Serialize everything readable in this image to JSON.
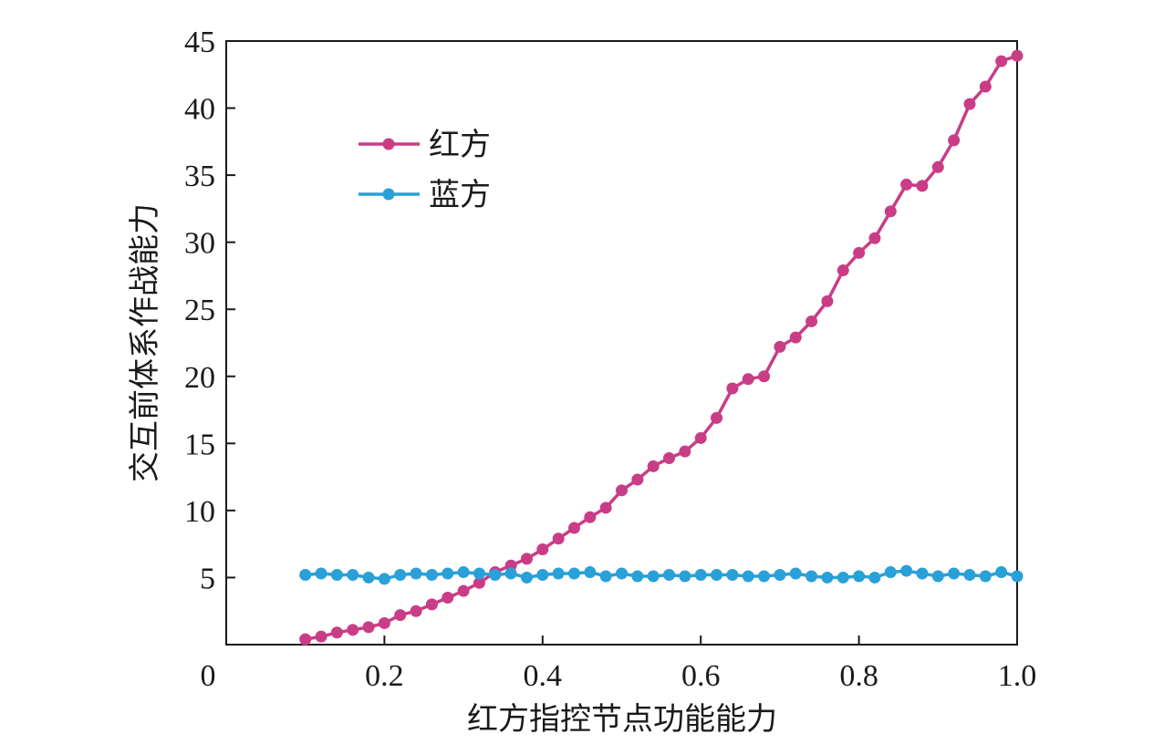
{
  "chart_data": {
    "type": "line",
    "xlabel": "红方指控节点功能能力",
    "ylabel": "交互前体系作战能力",
    "xlim": [
      0,
      1.0
    ],
    "ylim": [
      0,
      45
    ],
    "x_ticks": [
      0.2,
      0.4,
      0.6,
      0.8,
      1.0
    ],
    "x_tick_labels": [
      "0.2",
      "0.4",
      "0.6",
      "0.8",
      "1.0"
    ],
    "y_ticks": [
      5,
      10,
      15,
      20,
      25,
      30,
      35,
      40,
      45
    ],
    "y_tick_labels": [
      "5",
      "10",
      "15",
      "20",
      "25",
      "30",
      "35",
      "40",
      "45"
    ],
    "origin_label": "0",
    "grid": false,
    "legend_position": "top-left",
    "x": [
      0.1,
      0.12,
      0.14,
      0.16,
      0.18,
      0.2,
      0.22,
      0.24,
      0.26,
      0.28,
      0.3,
      0.32,
      0.34,
      0.36,
      0.38,
      0.4,
      0.42,
      0.44,
      0.46,
      0.48,
      0.5,
      0.52,
      0.54,
      0.56,
      0.58,
      0.6,
      0.62,
      0.64,
      0.66,
      0.68,
      0.7,
      0.72,
      0.74,
      0.76,
      0.78,
      0.8,
      0.82,
      0.84,
      0.86,
      0.88,
      0.9,
      0.92,
      0.94,
      0.96,
      0.98,
      1.0
    ],
    "series": [
      {
        "name": "红方",
        "color": "#c93d86",
        "values": [
          0.4,
          0.6,
          0.9,
          1.1,
          1.3,
          1.6,
          2.2,
          2.5,
          3.0,
          3.5,
          4.0,
          4.6,
          5.4,
          5.9,
          6.4,
          7.1,
          7.9,
          8.7,
          9.5,
          10.2,
          11.5,
          12.3,
          13.3,
          13.9,
          14.4,
          15.4,
          16.9,
          19.1,
          19.8,
          20.0,
          22.2,
          22.9,
          24.1,
          25.6,
          27.9,
          29.2,
          30.3,
          32.3,
          34.3,
          34.2,
          35.6,
          37.6,
          40.3,
          41.6,
          43.5,
          43.9
        ]
      },
      {
        "name": "蓝方",
        "color": "#2aa0d8",
        "values": [
          5.2,
          5.3,
          5.2,
          5.2,
          5.0,
          4.9,
          5.2,
          5.3,
          5.2,
          5.3,
          5.4,
          5.3,
          5.2,
          5.3,
          5.0,
          5.2,
          5.3,
          5.3,
          5.4,
          5.1,
          5.3,
          5.1,
          5.1,
          5.2,
          5.1,
          5.2,
          5.2,
          5.2,
          5.1,
          5.1,
          5.2,
          5.3,
          5.1,
          5.0,
          5.0,
          5.1,
          5.0,
          5.4,
          5.5,
          5.3,
          5.1,
          5.3,
          5.2,
          5.1,
          5.4,
          5.1
        ]
      }
    ]
  }
}
